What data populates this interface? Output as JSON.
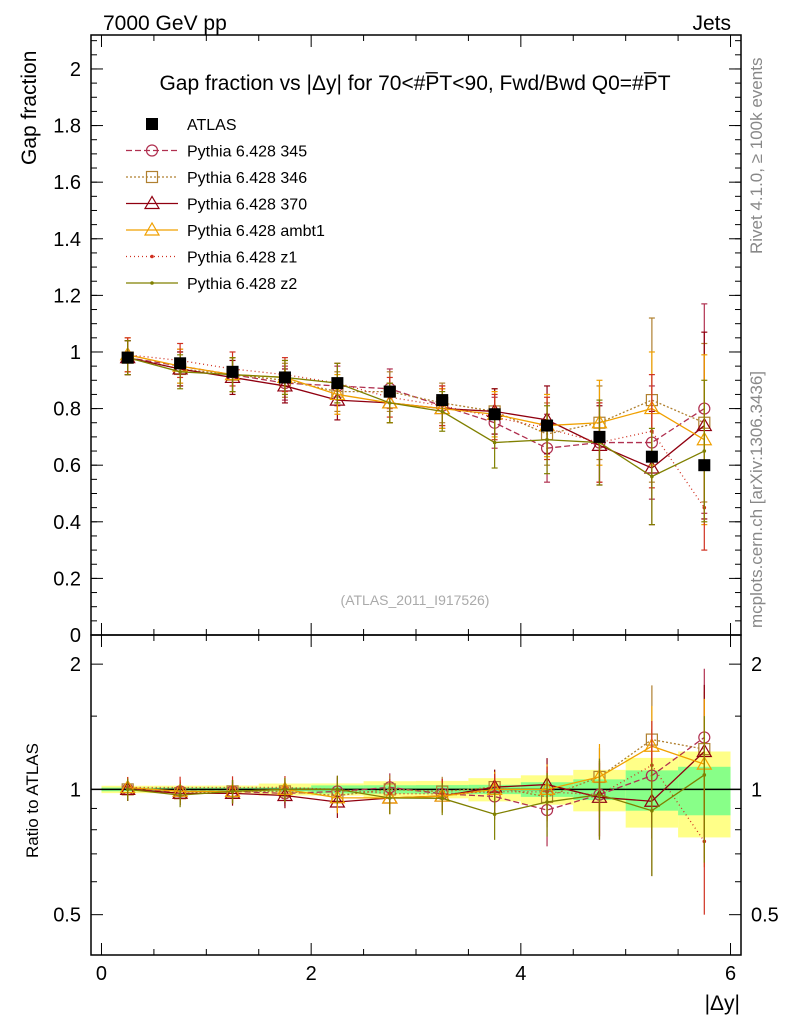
{
  "header": {
    "energy_label": "7000 GeV pp",
    "process_label": "Jets",
    "side_label_top": "Rivet 4.1.0, ≥ 100k events",
    "side_label_bottom": "mcplots.cern.ch [arXiv:1306.3436]"
  },
  "main": {
    "title": "Gap fraction vs |Δy| for 70<#P̅T<90, Fwd/Bwd Q0=#P̅T",
    "ylabel": "Gap fraction",
    "watermark": "(ATLAS_2011_I917526)",
    "yticks": [
      "0",
      "0.2",
      "0.4",
      "0.6",
      "0.8",
      "1",
      "1.2",
      "1.4",
      "1.6",
      "1.8",
      "2"
    ]
  },
  "ratio": {
    "ylabel": "Ratio to ATLAS",
    "yticks": [
      "0.5",
      "1",
      "2"
    ]
  },
  "xaxis": {
    "label": "|Δy|",
    "ticks": [
      "0",
      "2",
      "4",
      "6"
    ]
  },
  "chart_data": {
    "type": "scatter",
    "title": "Gap fraction vs |Δy| for 70<#P̅T<90, Fwd/Bwd Q0=#P̅T",
    "xlabel": "|Δy|",
    "ylabel": "Gap fraction",
    "xlim": [
      -0.1,
      6.1
    ],
    "ylim": [
      0,
      2.12
    ],
    "ratio_ylim": [
      0.4,
      2.35
    ],
    "x": [
      0.25,
      0.75,
      1.25,
      1.75,
      2.25,
      2.75,
      3.25,
      3.75,
      4.25,
      4.75,
      5.25,
      5.75
    ],
    "data": {
      "name": "ATLAS",
      "values": [
        0.98,
        0.96,
        0.93,
        0.91,
        0.89,
        0.86,
        0.83,
        0.78,
        0.74,
        0.7,
        0.63,
        0.6
      ],
      "band_inner": [
        0.01,
        0.01,
        0.01,
        0.01,
        0.02,
        0.02,
        0.02,
        0.02,
        0.03,
        0.04,
        0.07,
        0.08
      ],
      "band_outer": [
        0.02,
        0.02,
        0.02,
        0.03,
        0.03,
        0.04,
        0.04,
        0.05,
        0.06,
        0.08,
        0.12,
        0.14
      ]
    },
    "series": [
      {
        "name": "Pythia 6.428 345",
        "color": "#b03050",
        "dash": "6,3",
        "marker": "circle",
        "values": [
          0.98,
          0.95,
          0.92,
          0.89,
          0.88,
          0.87,
          0.81,
          0.75,
          0.66,
          0.68,
          0.68,
          0.8
        ],
        "errors": [
          0.06,
          0.06,
          0.06,
          0.06,
          0.07,
          0.07,
          0.07,
          0.09,
          0.12,
          0.14,
          0.2,
          0.37
        ]
      },
      {
        "name": "Pythia 6.428 346",
        "color": "#b08030",
        "dash": "2,2",
        "marker": "square",
        "values": [
          0.98,
          0.94,
          0.92,
          0.9,
          0.86,
          0.86,
          0.82,
          0.79,
          0.71,
          0.75,
          0.83,
          0.75
        ],
        "errors": [
          0.06,
          0.06,
          0.06,
          0.06,
          0.07,
          0.07,
          0.07,
          0.08,
          0.11,
          0.13,
          0.29,
          0.28
        ]
      },
      {
        "name": "Pythia 6.428 370",
        "color": "#900010",
        "dash": "",
        "marker": "triangle",
        "values": [
          0.98,
          0.94,
          0.91,
          0.88,
          0.83,
          0.82,
          0.8,
          0.79,
          0.76,
          0.67,
          0.59,
          0.74
        ],
        "errors": [
          0.06,
          0.06,
          0.06,
          0.06,
          0.07,
          0.07,
          0.07,
          0.08,
          0.12,
          0.14,
          0.2,
          0.33
        ]
      },
      {
        "name": "Pythia 6.428 ambt1",
        "color": "#f0a000",
        "dash": "",
        "marker": "triangle",
        "values": [
          0.99,
          0.95,
          0.92,
          0.91,
          0.85,
          0.82,
          0.8,
          0.78,
          0.74,
          0.75,
          0.8,
          0.69
        ],
        "errors": [
          0.06,
          0.06,
          0.06,
          0.06,
          0.07,
          0.07,
          0.07,
          0.08,
          0.11,
          0.15,
          0.2,
          0.3
        ]
      },
      {
        "name": "Pythia 6.428 z1",
        "color": "#d03020",
        "dash": "1,3",
        "marker": "dot",
        "values": [
          0.99,
          0.97,
          0.94,
          0.92,
          0.89,
          0.84,
          0.81,
          0.77,
          0.73,
          0.68,
          0.72,
          0.45
        ],
        "errors": [
          0.06,
          0.06,
          0.06,
          0.06,
          0.07,
          0.07,
          0.07,
          0.08,
          0.11,
          0.14,
          0.2,
          0.15
        ]
      },
      {
        "name": "Pythia 6.428 z2",
        "color": "#808000",
        "dash": "",
        "marker": "dot",
        "values": [
          0.98,
          0.93,
          0.92,
          0.91,
          0.89,
          0.82,
          0.79,
          0.68,
          0.69,
          0.68,
          0.56,
          0.65
        ],
        "errors": [
          0.06,
          0.06,
          0.06,
          0.06,
          0.07,
          0.07,
          0.07,
          0.09,
          0.12,
          0.15,
          0.17,
          0.25
        ]
      }
    ]
  }
}
